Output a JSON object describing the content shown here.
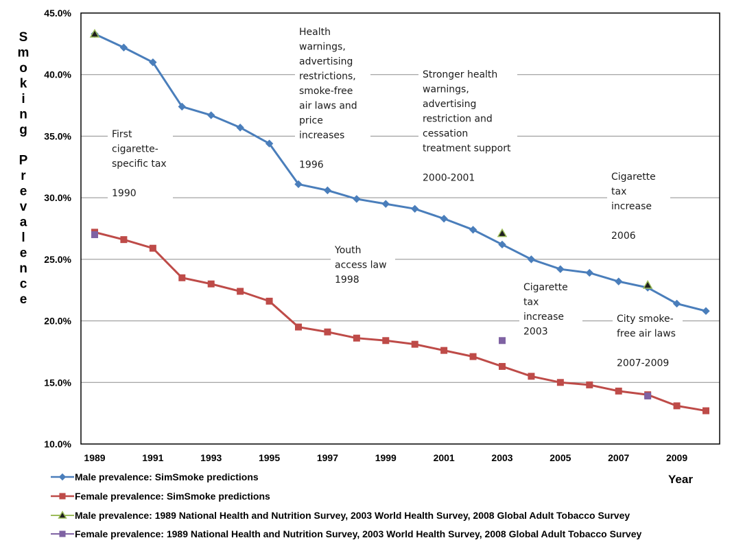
{
  "chart_data": {
    "type": "line",
    "title": "",
    "xlabel": "Year",
    "ylabel": "Smoking Prevalence",
    "xlim": [
      1989,
      2010
    ],
    "ylim": [
      10.0,
      45.0
    ],
    "grid": true,
    "legend_position": "bottom-left",
    "y_ticks": [
      "10.0%",
      "15.0%",
      "20.0%",
      "25.0%",
      "30.0%",
      "35.0%",
      "40.0%",
      "45.0%"
    ],
    "x_ticks": [
      "1989",
      "1991",
      "1993",
      "1995",
      "1997",
      "1999",
      "2001",
      "2003",
      "2005",
      "2007",
      "2009"
    ],
    "series": [
      {
        "name": "Male prevalence: SimSmoke predictions",
        "color": "#4a7ebb",
        "marker": "diamond",
        "x": [
          1989,
          1990,
          1991,
          1992,
          1993,
          1994,
          1995,
          1996,
          1997,
          1998,
          1999,
          2000,
          2001,
          2002,
          2003,
          2004,
          2005,
          2006,
          2007,
          2008,
          2009,
          2010
        ],
        "y": [
          43.3,
          42.2,
          41.0,
          37.4,
          36.7,
          35.7,
          34.4,
          31.1,
          30.6,
          29.9,
          29.5,
          29.1,
          28.3,
          27.4,
          26.2,
          25.0,
          24.2,
          23.9,
          23.2,
          22.7,
          21.4,
          20.8
        ]
      },
      {
        "name": "Female prevalence: SimSmoke predictions",
        "color": "#be4b48",
        "marker": "square",
        "x": [
          1989,
          1990,
          1991,
          1992,
          1993,
          1994,
          1995,
          1996,
          1997,
          1998,
          1999,
          2000,
          2001,
          2002,
          2003,
          2004,
          2005,
          2006,
          2007,
          2008,
          2009,
          2010
        ],
        "y": [
          27.2,
          26.6,
          25.9,
          23.5,
          23.0,
          22.4,
          21.6,
          19.5,
          19.1,
          18.6,
          18.4,
          18.1,
          17.6,
          17.1,
          16.3,
          15.5,
          15.0,
          14.8,
          14.3,
          14.0,
          13.1,
          12.7
        ]
      },
      {
        "name": "Male prevalence: 1989 National Health and Nutrition Survey, 2003 World Health Survey, 2008 Global Adult Tobacco Survey",
        "color": "#9bbb59",
        "marker": "triangle",
        "x": [
          1989,
          2003,
          2008
        ],
        "y": [
          43.3,
          27.1,
          22.9
        ]
      },
      {
        "name": "Female prevalence: 1989 National Health and Nutrition Survey, 2003 World Health Survey, 2008 Global Adult Tobacco Survey",
        "color": "#7f62a3",
        "marker": "square",
        "x": [
          1989,
          2003,
          2008
        ],
        "y": [
          27.0,
          18.4,
          13.9
        ]
      }
    ],
    "annotations": [
      {
        "id": "ann-1990",
        "lines": [
          "First",
          "cigarette-",
          "specific tax",
          "",
          "1990"
        ]
      },
      {
        "id": "ann-1996",
        "lines": [
          "Health",
          "warnings,",
          "advertising",
          "restrictions,",
          "smoke-free",
          "air laws and",
          "price",
          "increases",
          "",
          "1996"
        ]
      },
      {
        "id": "ann-2000",
        "lines": [
          "Stronger health",
          "warnings,",
          "advertising",
          "restriction and",
          "cessation",
          "treatment support",
          "",
          "2000-2001"
        ]
      },
      {
        "id": "ann-2006",
        "lines": [
          "Cigarette",
          "tax",
          "increase",
          "",
          "2006"
        ]
      },
      {
        "id": "ann-1998",
        "lines": [
          "Youth",
          "access law",
          "1998"
        ]
      },
      {
        "id": "ann-2003",
        "lines": [
          "Cigarette",
          "tax",
          "increase",
          "2003"
        ]
      },
      {
        "id": "ann-2007",
        "lines": [
          "City smoke-",
          "free air laws",
          "",
          "2007-2009"
        ]
      }
    ]
  }
}
